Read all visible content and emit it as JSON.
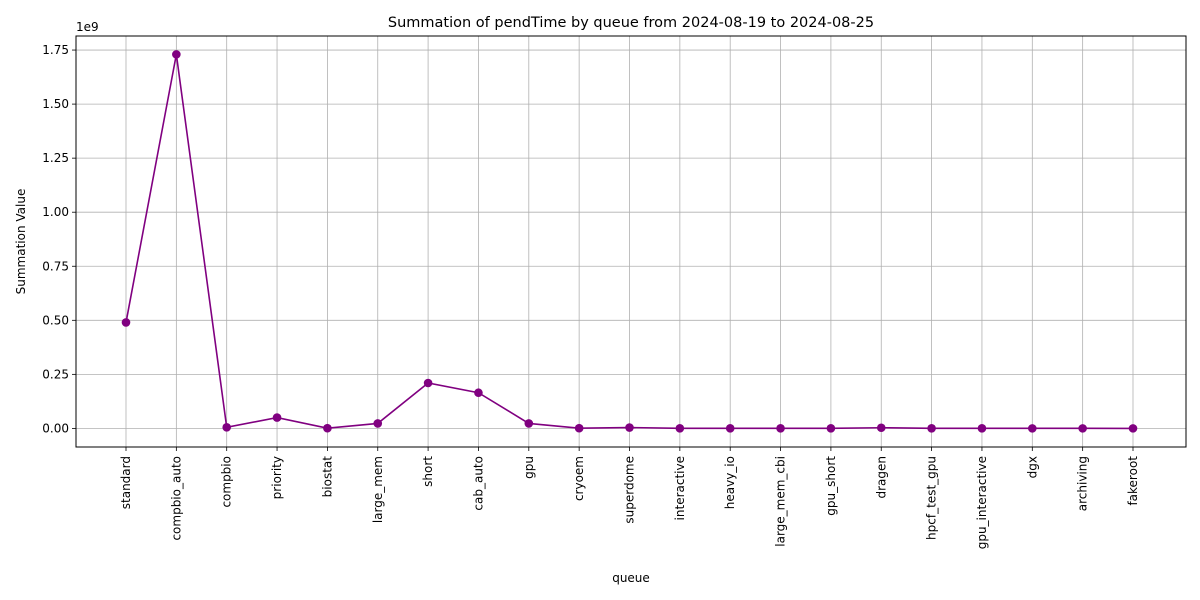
{
  "chart_data": {
    "type": "line",
    "title": "Summation of pendTime by queue from 2024-08-19 to 2024-08-25",
    "xlabel": "queue",
    "ylabel": "Summation Value",
    "y_offset_label": "1e9",
    "y_scale_factor": 1000000000,
    "ylim": [
      -0.086,
      1.815
    ],
    "y_ticks": [
      0.0,
      0.25,
      0.5,
      0.75,
      1.0,
      1.25,
      1.5,
      1.75
    ],
    "y_tick_labels": [
      "0.00",
      "0.25",
      "0.50",
      "0.75",
      "1.00",
      "1.25",
      "1.50",
      "1.75"
    ],
    "grid": true,
    "line_color": "#800080",
    "categories": [
      "standard",
      "compbio_auto",
      "compbio",
      "priority",
      "biostat",
      "large_mem",
      "short",
      "cab_auto",
      "gpu",
      "cryoem",
      "superdome",
      "interactive",
      "heavy_io",
      "large_mem_cbi",
      "gpu_short",
      "dragen",
      "hpcf_test_gpu",
      "gpu_interactive",
      "dgx",
      "archiving",
      "fakeroot"
    ],
    "series": [
      {
        "values": [
          0.49,
          1.73,
          0.005,
          0.05,
          0.001,
          0.023,
          0.21,
          0.165,
          0.023,
          0.001,
          0.004,
          0.0005,
          0.0003,
          0.0003,
          0.0005,
          0.003,
          0.0005,
          0.0003,
          0.0002,
          0.0002,
          0.0001
        ]
      }
    ]
  }
}
